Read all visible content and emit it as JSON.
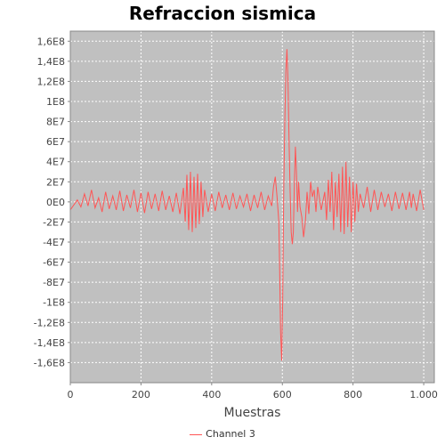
{
  "chart_data": {
    "type": "line",
    "title": "Refraccion sismica",
    "xlabel": "Muestras",
    "ylabel": "",
    "xlim": [
      0,
      1030
    ],
    "ylim": [
      -180000000,
      170000000
    ],
    "x_ticks": [
      0,
      200,
      400,
      600,
      800,
      1000
    ],
    "x_tick_labels": [
      "0",
      "200",
      "400",
      "600",
      "800",
      "1.000"
    ],
    "y_ticks": [
      160000000,
      140000000,
      120000000,
      100000000,
      80000000,
      60000000,
      40000000,
      20000000,
      0,
      -20000000,
      -40000000,
      -60000000,
      -80000000,
      -100000000,
      -120000000,
      -140000000,
      -160000000
    ],
    "y_tick_labels": [
      "1,6E8",
      "1,4E8",
      "1,2E8",
      "1E8",
      "8E7",
      "6E7",
      "4E7",
      "2E7",
      "0E0",
      "-2E7",
      "-4E7",
      "-6E7",
      "-8E7",
      "-1E8",
      "-1,2E8",
      "-1,4E8",
      "-1,6E8"
    ],
    "grid": true,
    "legend_position": "bottom",
    "background": "#c0c0c0",
    "series": [
      {
        "name": "Channel 3",
        "color": "#ff5555",
        "points": [
          [
            0,
            -8000000
          ],
          [
            10,
            -3000000
          ],
          [
            20,
            2000000
          ],
          [
            30,
            -5000000
          ],
          [
            40,
            8000000
          ],
          [
            50,
            -4000000
          ],
          [
            60,
            12000000
          ],
          [
            70,
            -6000000
          ],
          [
            80,
            4000000
          ],
          [
            90,
            -10000000
          ],
          [
            100,
            10000000
          ],
          [
            110,
            -7000000
          ],
          [
            120,
            6000000
          ],
          [
            130,
            -8000000
          ],
          [
            140,
            11000000
          ],
          [
            150,
            -9000000
          ],
          [
            160,
            7000000
          ],
          [
            170,
            -6000000
          ],
          [
            180,
            12000000
          ],
          [
            190,
            -10000000
          ],
          [
            200,
            9000000
          ],
          [
            210,
            -11000000
          ],
          [
            220,
            10000000
          ],
          [
            230,
            -7000000
          ],
          [
            240,
            8000000
          ],
          [
            250,
            -9000000
          ],
          [
            260,
            11000000
          ],
          [
            270,
            -8000000
          ],
          [
            280,
            6000000
          ],
          [
            290,
            -10000000
          ],
          [
            300,
            9000000
          ],
          [
            310,
            -12000000
          ],
          [
            320,
            14000000
          ],
          [
            325,
            -20000000
          ],
          [
            330,
            27000000
          ],
          [
            335,
            -28000000
          ],
          [
            340,
            30000000
          ],
          [
            345,
            -30000000
          ],
          [
            350,
            25000000
          ],
          [
            355,
            -26000000
          ],
          [
            360,
            28000000
          ],
          [
            365,
            -22000000
          ],
          [
            370,
            20000000
          ],
          [
            375,
            -15000000
          ],
          [
            380,
            12000000
          ],
          [
            390,
            -10000000
          ],
          [
            400,
            8000000
          ],
          [
            410,
            -9000000
          ],
          [
            420,
            10000000
          ],
          [
            430,
            -6000000
          ],
          [
            440,
            7000000
          ],
          [
            450,
            -8000000
          ],
          [
            460,
            9000000
          ],
          [
            470,
            -7000000
          ],
          [
            480,
            6000000
          ],
          [
            490,
            -5000000
          ],
          [
            500,
            8000000
          ],
          [
            510,
            -9000000
          ],
          [
            520,
            7000000
          ],
          [
            530,
            -6000000
          ],
          [
            540,
            10000000
          ],
          [
            550,
            -8000000
          ],
          [
            560,
            6000000
          ],
          [
            570,
            -4000000
          ],
          [
            575,
            15000000
          ],
          [
            580,
            25000000
          ],
          [
            585,
            5000000
          ],
          [
            590,
            -20000000
          ],
          [
            592,
            -60000000
          ],
          [
            595,
            -130000000
          ],
          [
            598,
            -158000000
          ],
          [
            601,
            -100000000
          ],
          [
            604,
            10000000
          ],
          [
            607,
            80000000
          ],
          [
            610,
            130000000
          ],
          [
            613,
            152000000
          ],
          [
            616,
            120000000
          ],
          [
            619,
            60000000
          ],
          [
            622,
            10000000
          ],
          [
            625,
            -30000000
          ],
          [
            628,
            -42000000
          ],
          [
            631,
            -30000000
          ],
          [
            634,
            20000000
          ],
          [
            637,
            55000000
          ],
          [
            640,
            30000000
          ],
          [
            643,
            -10000000
          ],
          [
            646,
            20000000
          ],
          [
            650,
            -5000000
          ],
          [
            655,
            -15000000
          ],
          [
            660,
            -35000000
          ],
          [
            665,
            -20000000
          ],
          [
            670,
            10000000
          ],
          [
            675,
            -12000000
          ],
          [
            680,
            20000000
          ],
          [
            685,
            5000000
          ],
          [
            690,
            12000000
          ],
          [
            695,
            -10000000
          ],
          [
            700,
            15000000
          ],
          [
            710,
            -8000000
          ],
          [
            720,
            10000000
          ],
          [
            725,
            -18000000
          ],
          [
            730,
            22000000
          ],
          [
            735,
            -10000000
          ],
          [
            740,
            30000000
          ],
          [
            745,
            -28000000
          ],
          [
            750,
            20000000
          ],
          [
            755,
            -15000000
          ],
          [
            760,
            28000000
          ],
          [
            765,
            -30000000
          ],
          [
            770,
            35000000
          ],
          [
            775,
            -32000000
          ],
          [
            780,
            40000000
          ],
          [
            785,
            -25000000
          ],
          [
            790,
            25000000
          ],
          [
            795,
            -30000000
          ],
          [
            800,
            20000000
          ],
          [
            805,
            -20000000
          ],
          [
            810,
            18000000
          ],
          [
            815,
            -10000000
          ],
          [
            820,
            8000000
          ],
          [
            830,
            -6000000
          ],
          [
            840,
            15000000
          ],
          [
            850,
            -10000000
          ],
          [
            860,
            12000000
          ],
          [
            870,
            -8000000
          ],
          [
            880,
            10000000
          ],
          [
            890,
            -5000000
          ],
          [
            900,
            8000000
          ],
          [
            910,
            -9000000
          ],
          [
            920,
            10000000
          ],
          [
            930,
            -7000000
          ],
          [
            940,
            9000000
          ],
          [
            950,
            -8000000
          ],
          [
            960,
            10000000
          ],
          [
            965,
            -6000000
          ],
          [
            970,
            8000000
          ],
          [
            980,
            -9000000
          ],
          [
            990,
            12000000
          ],
          [
            1000,
            -8000000
          ]
        ]
      }
    ]
  }
}
